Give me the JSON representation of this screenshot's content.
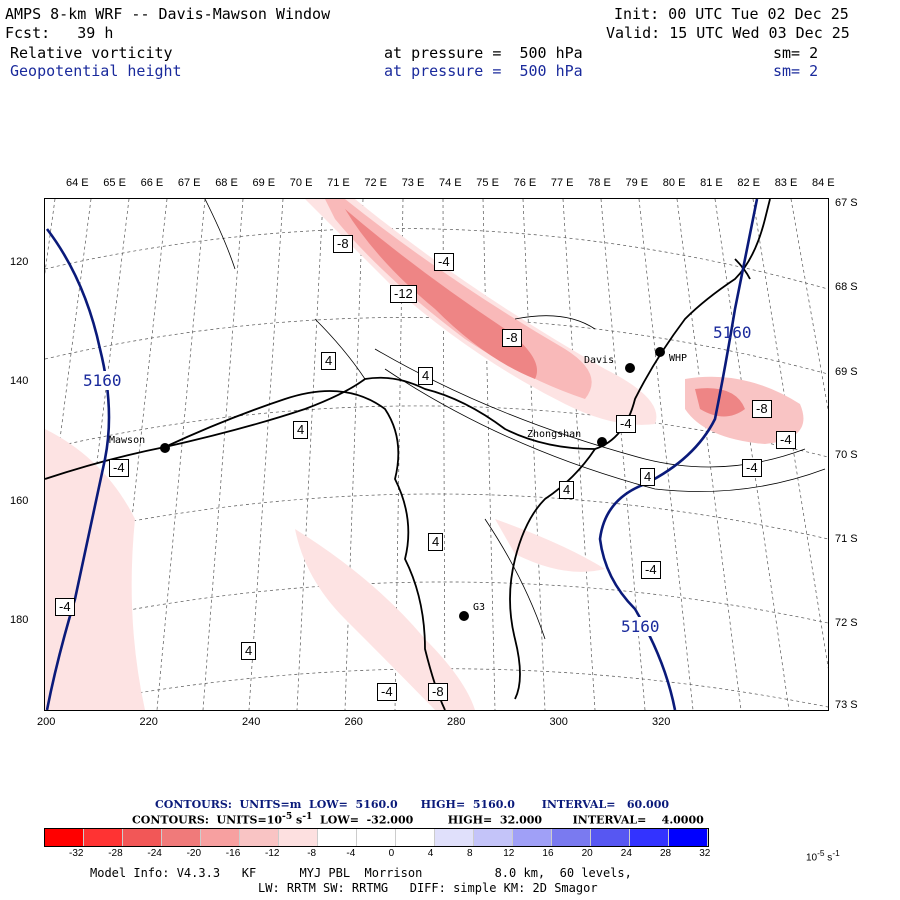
{
  "header": {
    "title": "AMPS 8-km WRF -- Davis-Mawson Window",
    "init": "Init: 00 UTC Tue 02 Dec 25",
    "fcst": "Fcst:   39 h",
    "valid": "Valid: 15 UTC Wed 03 Dec 25",
    "field1": "Relative vorticity",
    "field1_level": "at pressure =  500 hPa",
    "field1_sm": "sm= 2",
    "field2": "Geopotential height",
    "field2_level": "at pressure =  500 hPa",
    "field2_sm": "sm= 2"
  },
  "axes": {
    "top_lon": [
      "64 E",
      "65 E",
      "66 E",
      "67 E",
      "68 E",
      "69 E",
      "70 E",
      "71 E",
      "72 E",
      "73 E",
      "74 E",
      "75 E",
      "76 E",
      "77 E",
      "78 E",
      "79 E",
      "80 E",
      "81 E",
      "82 E",
      "83 E",
      "84 E"
    ],
    "right_lat": [
      "67 S",
      "68 S",
      "69 S",
      "70 S",
      "71 S",
      "72 S",
      "73 S"
    ],
    "left_y": [
      "120",
      "140",
      "160",
      "180"
    ],
    "bottom_x": [
      "200",
      "220",
      "240",
      "260",
      "280",
      "300",
      "320"
    ]
  },
  "map": {
    "stations": [
      "Mawson",
      "Davis",
      "WHP",
      "Zhongshan",
      "G3"
    ],
    "height_label": "5160",
    "vort_labels": [
      "-8",
      "-4",
      "-12",
      "-8",
      "-4",
      "4",
      "4",
      "4",
      "-8",
      "-4",
      "-4",
      "4",
      "-4",
      "4",
      "4",
      "-4",
      "-4",
      "4",
      "-4",
      "-8"
    ],
    "colors": {
      "height_contour": "#0a1a7a",
      "neg_fill_light": "#fde3e3",
      "neg_fill_mid": "#f9b9b9",
      "neg_fill_dark": "#ee8585",
      "coast": "#000000"
    }
  },
  "footer": {
    "contours1": "CONTOURS:  UNITS=m  LOW=  5160.0      HIGH=  5160.0       INTERVAL=   60.000",
    "contours2": "CONTOURS:  UNITS=10",
    "contours2_exp": "-5",
    "contours2_rest": " s",
    "contours2_exp2": "-1",
    "contours2_tail": "  LOW=  -32.000         HIGH=  32.000        INTERVAL=    4.0000",
    "colorbar_labels": [
      "-32",
      "-28",
      "-24",
      "-20",
      "-16",
      "-12",
      "-8",
      "-4",
      "0",
      "4",
      "8",
      "12",
      "16",
      "20",
      "24",
      "28",
      "32"
    ],
    "colorbar_unit": "10",
    "colorbar_unit_exp": "-5",
    "colorbar_unit_tail": " s",
    "colorbar_unit_exp2": "-1",
    "colorbar_colors": [
      "#ff0000",
      "#ff3333",
      "#f25757",
      "#f07a7a",
      "#f7a0a0",
      "#f9c4c4",
      "#fde0e0",
      "#ffffff",
      "#ffffff",
      "#ffffff",
      "#e0e0fb",
      "#c4c4f9",
      "#a0a0f7",
      "#7a7af0",
      "#5757f2",
      "#3333ff",
      "#0000ff"
    ],
    "info1": "Model Info: V4.3.3   KF      MYJ PBL  Morrison          8.0 km,  60 levels,",
    "info2": "LW: RRTM SW: RRTMG   DIFF: simple KM: 2D Smagor"
  }
}
